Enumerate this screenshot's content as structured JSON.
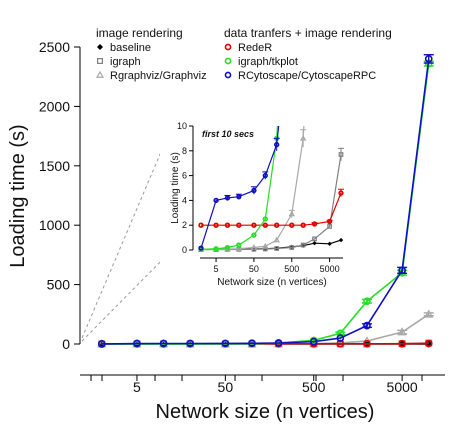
{
  "chart_data": {
    "type": "line",
    "xlabel": "Network size (n vertices)",
    "ylabel": "Loading time (s)",
    "xscale": "log",
    "xlim": [
      1,
      20000
    ],
    "ylim": [
      0,
      2500
    ],
    "x_ticks": [
      5,
      50,
      500,
      5000
    ],
    "y_ticks": [
      0,
      500,
      1000,
      1500,
      2000,
      2500
    ],
    "x_minor_ticks": [
      1,
      2,
      10,
      20,
      100,
      200,
      1000,
      2000,
      10000
    ],
    "x": [
      2,
      5,
      10,
      20,
      50,
      100,
      200,
      500,
      1000,
      2000,
      5000,
      10000
    ],
    "legend_groups": [
      {
        "title": "image rendering",
        "series": [
          0,
          1,
          2
        ]
      },
      {
        "title": "data tranfers + image rendering",
        "series": [
          3,
          4,
          5
        ]
      }
    ],
    "series": [
      {
        "name": "baseline",
        "color": "#000000",
        "marker": "diamond",
        "values": [
          0.05,
          0.05,
          0.06,
          0.07,
          0.08,
          0.1,
          0.14,
          0.25,
          0.35,
          0.55,
          0.5,
          0.8
        ],
        "errors": [
          0,
          0,
          0,
          0,
          0,
          0,
          0,
          0,
          0,
          0,
          0,
          0
        ]
      },
      {
        "name": "igraph",
        "color": "#808080",
        "marker": "square",
        "values": [
          0.03,
          0.03,
          0.04,
          0.05,
          0.06,
          0.08,
          0.12,
          0.2,
          0.4,
          0.9,
          1.9,
          7.7
        ],
        "errors": [
          0,
          0,
          0,
          0,
          0,
          0,
          0,
          0,
          0,
          0,
          0,
          0.5
        ]
      },
      {
        "name": "Rgraphviz/Graphviz",
        "color": "#a8a8a8",
        "marker": "triangle",
        "values": [
          0.05,
          0.06,
          0.07,
          0.1,
          0.2,
          0.3,
          0.8,
          2.9,
          9,
          25,
          100,
          250
        ],
        "errors": [
          0,
          0,
          0,
          0,
          0,
          0,
          0,
          0.3,
          0.7,
          3,
          15,
          12
        ]
      },
      {
        "name": "RedeR",
        "color": "#e00000",
        "marker": "circle",
        "values": [
          2.0,
          2.0,
          2.0,
          2.0,
          2.0,
          2.0,
          2.0,
          2.0,
          2.0,
          2.1,
          2.3,
          4.6
        ],
        "errors": [
          0,
          0,
          0,
          0,
          0,
          0,
          0,
          0,
          0,
          0.1,
          0.1,
          0.3
        ]
      },
      {
        "name": "igraph/tkplot",
        "color": "#22e022",
        "marker": "circle",
        "values": [
          0.05,
          0.1,
          0.2,
          0.4,
          1.2,
          2.5,
          9,
          30,
          90,
          360,
          600,
          2360
        ],
        "errors": [
          0,
          0,
          0,
          0,
          0,
          0,
          0,
          2,
          10,
          15,
          20,
          20
        ]
      },
      {
        "name": "RCytoscape/CytoscapeRPC",
        "color": "#1010c0",
        "marker": "circle",
        "values": [
          0.15,
          4.0,
          4.2,
          4.3,
          4.8,
          6.0,
          8.5,
          20,
          50,
          155,
          620,
          2400
        ],
        "errors": [
          0,
          0,
          0.2,
          0.2,
          0.3,
          0.3,
          0.5,
          2,
          5,
          15,
          25,
          35
        ]
      }
    ],
    "inset": {
      "title": "first 10 secs",
      "xlabel": "Network size (n vertices)",
      "ylabel": "Loading time (s)",
      "ylim": [
        0,
        10
      ],
      "y_ticks": [
        0,
        2,
        4,
        6,
        8,
        10
      ],
      "x_ticks": [
        5,
        50,
        500,
        5000
      ]
    }
  }
}
